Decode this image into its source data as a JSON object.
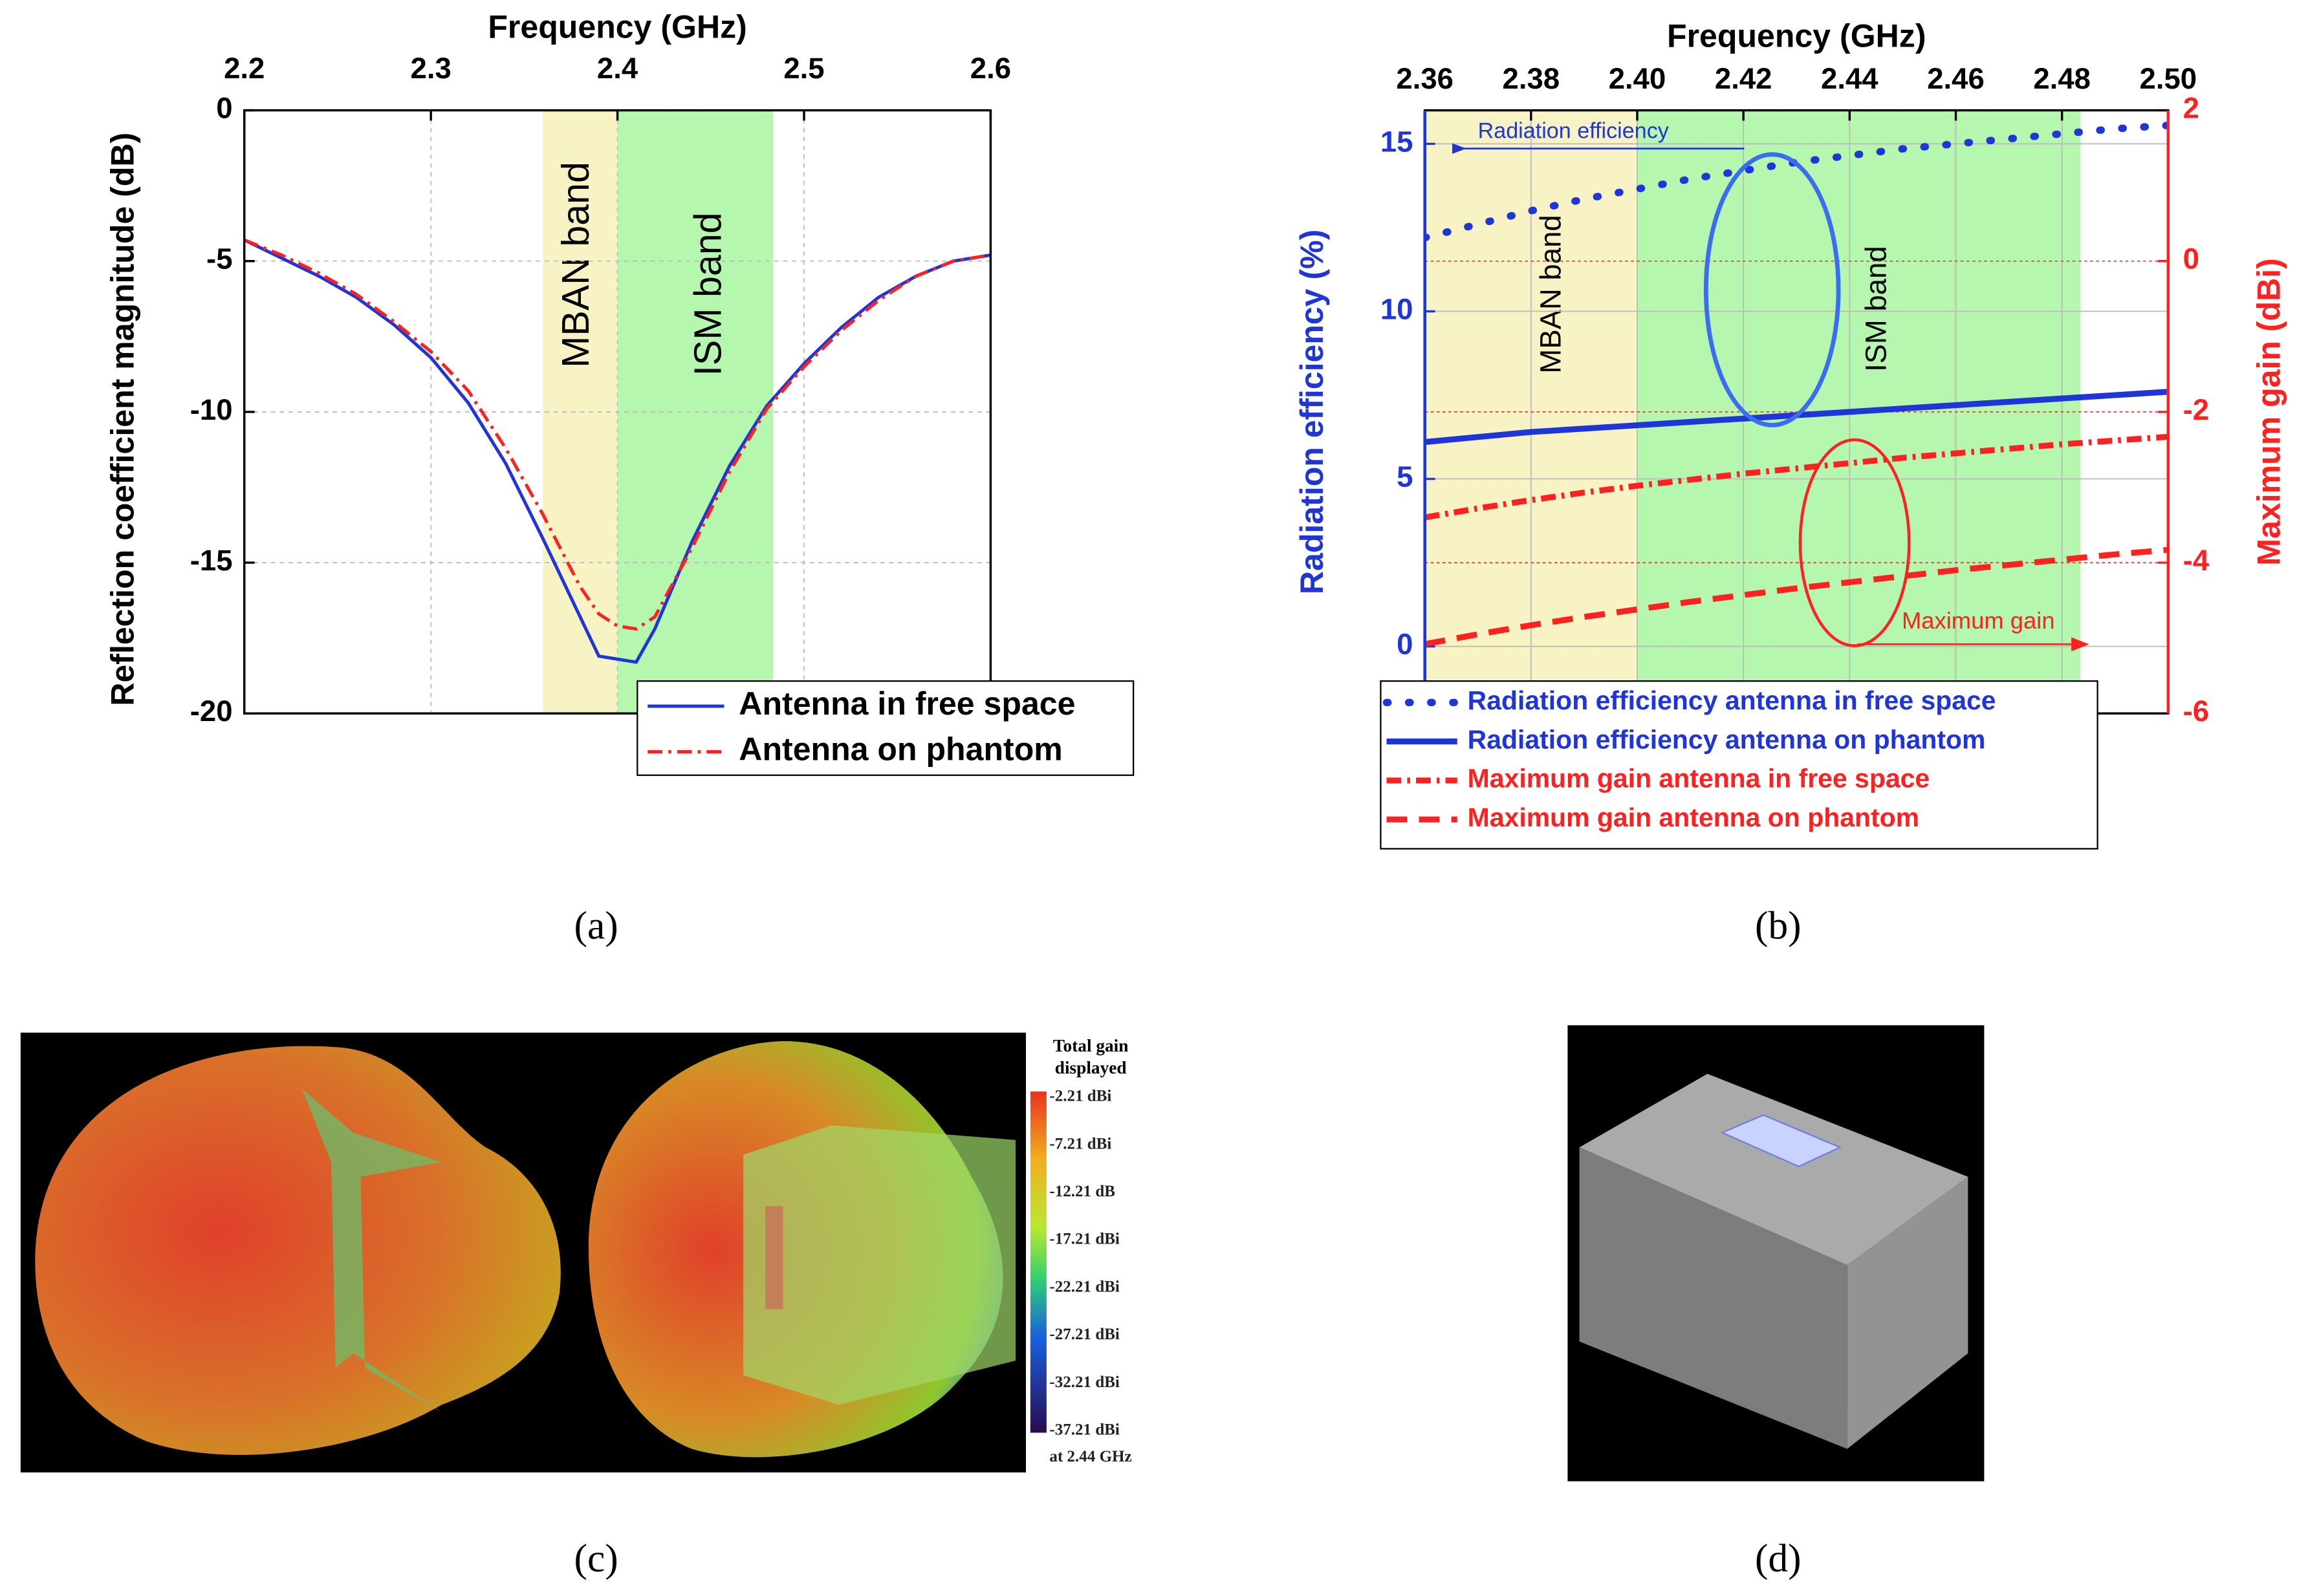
{
  "chart_data": [
    {
      "type": "line",
      "xlabel": "Frequency (GHz)",
      "ylabel": "Reflection coefficient magnitude (dB)",
      "x": [
        2.2,
        2.22,
        2.24,
        2.26,
        2.28,
        2.3,
        2.32,
        2.34,
        2.36,
        2.38,
        2.39,
        2.4,
        2.41,
        2.42,
        2.44,
        2.46,
        2.48,
        2.5,
        2.52,
        2.54,
        2.56,
        2.58,
        2.6
      ],
      "series": [
        {
          "name": "Antenna in free space",
          "color": "#1f35d8",
          "style": "solid",
          "values": [
            -4.3,
            -4.9,
            -5.5,
            -6.2,
            -7.1,
            -8.2,
            -9.7,
            -11.7,
            -14.2,
            -16.8,
            -18.1,
            -18.2,
            -18.3,
            -17.2,
            -14.3,
            -11.8,
            -9.8,
            -8.4,
            -7.2,
            -6.2,
            -5.5,
            -5.0,
            -4.8
          ]
        },
        {
          "name": "Antenna on phantom",
          "color": "#ff2020",
          "style": "dashdot",
          "values": [
            -4.3,
            -4.8,
            -5.4,
            -6.1,
            -7.0,
            -8.0,
            -9.3,
            -11.2,
            -13.4,
            -15.8,
            -16.7,
            -17.1,
            -17.2,
            -16.8,
            -14.5,
            -12.0,
            -9.9,
            -8.5,
            -7.3,
            -6.3,
            -5.5,
            -5.0,
            -4.8
          ]
        }
      ],
      "xlim": [
        2.2,
        2.6
      ],
      "xticks": [
        2.2,
        2.3,
        2.4,
        2.5,
        2.6
      ],
      "ylim": [
        -20,
        0
      ],
      "yticks": [
        0,
        -5,
        -10,
        -15,
        -20
      ],
      "bands": [
        {
          "label": "MBAN band",
          "range": [
            2.36,
            2.4
          ],
          "color": "#f8f3c4"
        },
        {
          "label": "ISM band",
          "range": [
            2.4,
            2.4835
          ],
          "color": "#b5f7ae"
        }
      ],
      "grid": true,
      "legend": "lower right"
    },
    {
      "type": "line",
      "xlabel": "Frequency (GHz)",
      "ylabel": "Radiation efficiency (%)",
      "y2label": "Maximum gain (dBi)",
      "ycolor": "#1f35d8",
      "y2color": "#ff2020",
      "x": [
        2.36,
        2.37,
        2.38,
        2.39,
        2.4,
        2.41,
        2.42,
        2.43,
        2.44,
        2.45,
        2.46,
        2.47,
        2.48,
        2.49,
        2.5
      ],
      "series": [
        {
          "name": "Radiation efficiency antenna in free space",
          "color": "#1f35d8",
          "style": "dotted",
          "values": [
            12.2,
            12.6,
            13.0,
            13.35,
            13.65,
            13.95,
            14.2,
            14.45,
            14.65,
            14.85,
            15.0,
            15.15,
            15.3,
            15.45,
            15.55
          ]
        },
        {
          "name": "Radiation efficiency antenna on phantom",
          "color": "#1f35d8",
          "style": "solid",
          "values": [
            6.1,
            6.25,
            6.4,
            6.5,
            6.6,
            6.7,
            6.8,
            6.9,
            7.0,
            7.1,
            7.2,
            7.3,
            7.4,
            7.5,
            7.6
          ]
        },
        {
          "name": "Maximum gain antenna in free space",
          "color": "#ff2020",
          "style": "dashdot",
          "axis": "y2",
          "values": [
            -3.4,
            -3.28,
            -3.17,
            -3.07,
            -2.98,
            -2.9,
            -2.82,
            -2.75,
            -2.68,
            -2.61,
            -2.55,
            -2.49,
            -2.43,
            -2.38,
            -2.33
          ]
        },
        {
          "name": "Maximum gain antenna on phantom",
          "color": "#ff2020",
          "style": "dashed",
          "axis": "y2",
          "values": [
            -5.08,
            -4.95,
            -4.83,
            -4.72,
            -4.62,
            -4.52,
            -4.43,
            -4.34,
            -4.26,
            -4.18,
            -4.1,
            -4.03,
            -3.96,
            -3.89,
            -3.83
          ]
        }
      ],
      "xlim": [
        2.36,
        2.5
      ],
      "xticks": [
        {
          "value": 2.36,
          "label": "2.36"
        },
        {
          "value": 2.38,
          "label": "2.38"
        },
        {
          "value": 2.4,
          "label": "2.40"
        },
        {
          "value": 2.42,
          "label": "2.42"
        },
        {
          "value": 2.44,
          "label": "2.44"
        },
        {
          "value": 2.46,
          "label": "2.46"
        },
        {
          "value": 2.48,
          "label": "2.48"
        },
        {
          "value": 2.5,
          "label": "2.50"
        }
      ],
      "ylim": [
        -2,
        16
      ],
      "yticks": [
        0,
        5,
        10,
        15
      ],
      "y2lim": [
        -6,
        2
      ],
      "y2ticks": [
        -6,
        -4,
        -2,
        0,
        2
      ],
      "bands": [
        {
          "label": "MBAN band",
          "range": [
            2.36,
            2.4
          ],
          "color": "#f8f3c4"
        },
        {
          "label": "ISM band",
          "range": [
            2.4,
            2.4835
          ],
          "color": "#b5f7ae"
        }
      ],
      "grid": true,
      "y2grid": true,
      "legend": "lower left",
      "annotations": [
        "Radiation efficiency",
        "Maximum gain"
      ]
    }
  ],
  "figure": {
    "panel_labels": [
      "(a)",
      "(b)",
      "(c)",
      "(d)"
    ],
    "colorbar": {
      "title": [
        "Total gain",
        "displayed"
      ],
      "labels": [
        "-2.21 dBi",
        "-7.21 dBi",
        "-12.21 dB",
        "-17.21 dBi",
        "-22.21 dBi",
        "-27.21 dBi",
        "-32.21 dBi",
        "-37.21 dBi"
      ],
      "note": "at 2.44 GHz"
    }
  }
}
